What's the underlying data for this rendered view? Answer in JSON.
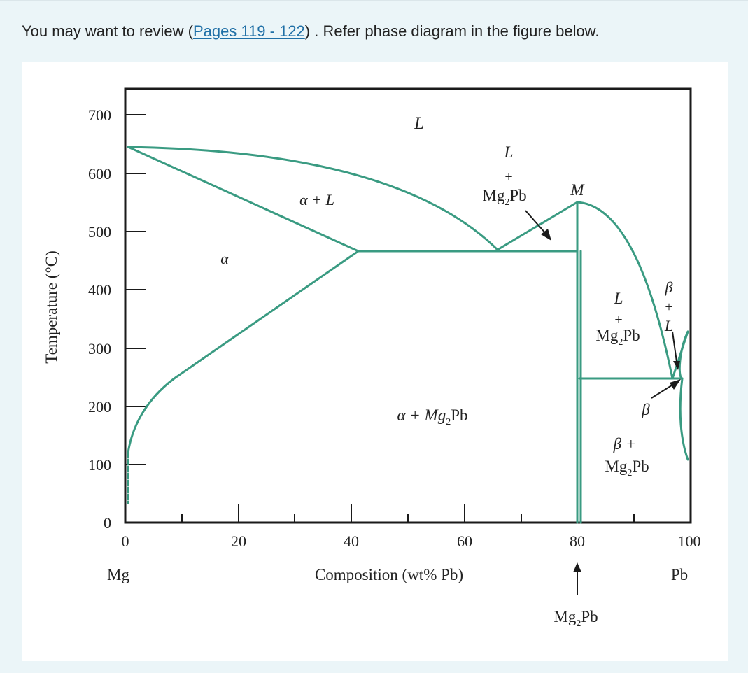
{
  "intro": {
    "prefix": "You may want to review (",
    "link_text": "Pages 119 - 122",
    "suffix": ") . Refer phase diagram in the figure below."
  },
  "diagram": {
    "colors": {
      "phase_line": "#3a9b82",
      "axis": "#1a1a1a"
    },
    "y_axis_label": "Temperature (°C)",
    "x_axis_label": "Composition (wt% Pb)",
    "y_ticks": [
      "0",
      "100",
      "200",
      "300",
      "400",
      "500",
      "600",
      "700"
    ],
    "x_ticks": [
      "0",
      "20",
      "40",
      "60",
      "80",
      "100"
    ],
    "left_end_label": "Mg",
    "right_end_label": "Pb",
    "compound_marker": {
      "main": "Mg",
      "sub": "2",
      "tail": "Pb"
    },
    "regions": {
      "liquid": "L",
      "alpha": "α",
      "alpha_plus_L": "α + L",
      "alpha_plus_compound": {
        "pre": "α + Mg",
        "sub": "2",
        "post": "Pb"
      },
      "L_plus_compound_left": {
        "top": "L",
        "plus": "+",
        "main": "Mg",
        "sub": "2",
        "post": "Pb"
      },
      "max_point": "M",
      "L_plus_compound_right": {
        "top": "L",
        "plus": "+",
        "main": "Mg",
        "sub": "2",
        "post": "Pb"
      },
      "beta_plus_L": {
        "beta": "β",
        "plus": "+",
        "L": "L"
      },
      "beta": "β",
      "beta_plus_compound": {
        "top": "β +",
        "main": "Mg",
        "sub": "2",
        "post": "Pb"
      }
    }
  }
}
